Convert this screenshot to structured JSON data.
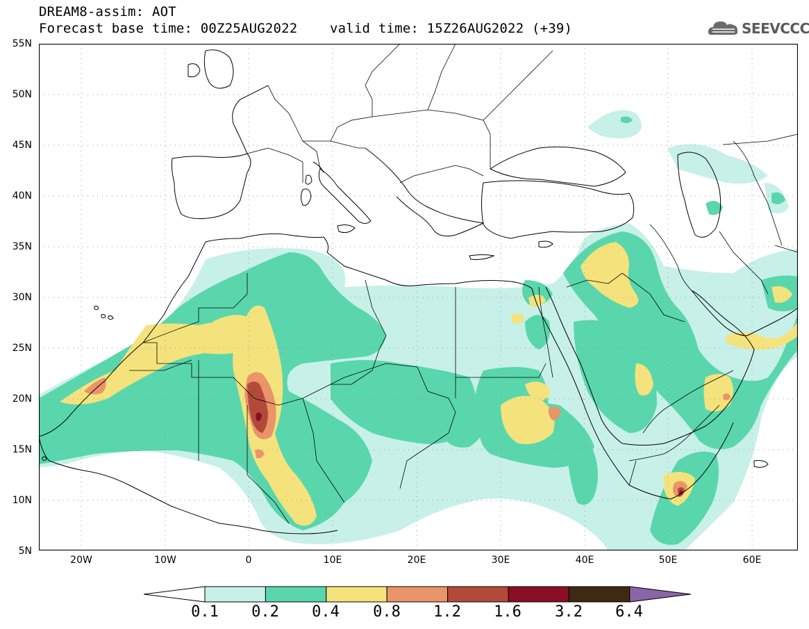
{
  "header": {
    "title": "DREAM8-assim: AOT",
    "line2": "Forecast base time: 00Z25AUG2022    valid time: 15Z26AUG2022 (+39)",
    "logo_text": "SEEVCCC"
  },
  "axes": {
    "lat_labels": [
      "55N",
      "50N",
      "45N",
      "40N",
      "35N",
      "30N",
      "25N",
      "20N",
      "15N",
      "10N",
      "5N"
    ],
    "lon_labels": [
      "20W",
      "10W",
      "0",
      "10E",
      "20E",
      "30E",
      "40E",
      "50E",
      "60E"
    ]
  },
  "colorbar": {
    "colors": [
      "#ffffff",
      "#c7f0e8",
      "#5ad6ac",
      "#f4e37c",
      "#ea946a",
      "#b24a3a",
      "#8a0e25",
      "#3e2a13",
      "#8a65a8"
    ],
    "labels": [
      "0.1",
      "0.2",
      "0.4",
      "0.8",
      "1.2",
      "1.6",
      "3.2",
      "6.4"
    ]
  },
  "map_colors": {
    "c1": "#c7f0e8",
    "c2": "#5ad6ac",
    "c3": "#f4e37c",
    "c4": "#ea946a",
    "c5": "#b24a3a",
    "c6": "#8a0e25"
  }
}
